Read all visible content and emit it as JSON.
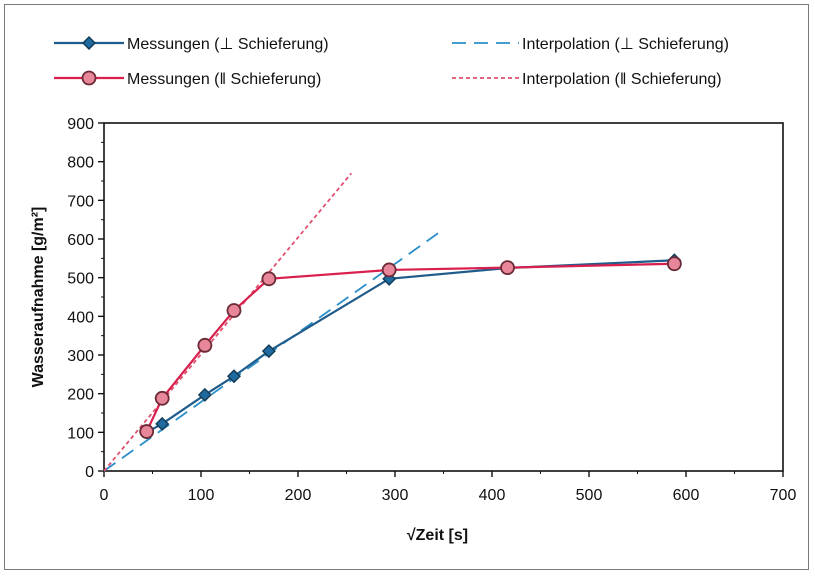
{
  "chart_data": {
    "type": "line",
    "xlabel": "√Zeit [s]",
    "ylabel": "Wasseraufnahme [g/m²]",
    "xlim": [
      0,
      700
    ],
    "ylim": [
      0,
      900
    ],
    "xticks": [
      0,
      100,
      200,
      300,
      400,
      500,
      600,
      700
    ],
    "yticks": [
      0,
      100,
      200,
      300,
      400,
      500,
      600,
      700,
      800,
      900
    ],
    "grid": false,
    "legend_position": "top",
    "series": [
      {
        "name": "Messungen (⊥ Schieferung)",
        "color": "#1f5c8b",
        "marker": "diamond",
        "line_style": "solid",
        "x": [
          44,
          60,
          104,
          134,
          170,
          294,
          416,
          588
        ],
        "y": [
          100,
          122,
          197,
          245,
          310,
          497,
          525,
          545
        ]
      },
      {
        "name": "Messungen (‖ Schieferung)",
        "color": "#d81f4e",
        "marker": "circle",
        "marker_fill": "#e8879a",
        "line_style": "solid",
        "x": [
          44,
          60,
          104,
          134,
          170,
          294,
          416,
          588
        ],
        "y": [
          102,
          188,
          325,
          415,
          497,
          520,
          526,
          536
        ]
      },
      {
        "name": "Interpolation (⊥ Schieferung)",
        "color": "#2b8fc9",
        "marker": "none",
        "line_style": "long-dash",
        "x": [
          0,
          350
        ],
        "y": [
          0,
          625
        ]
      },
      {
        "name": "Interpolation (‖ Schieferung)",
        "color": "#e0506e",
        "marker": "none",
        "line_style": "short-dash",
        "x": [
          0,
          255
        ],
        "y": [
          0,
          770
        ]
      }
    ]
  }
}
